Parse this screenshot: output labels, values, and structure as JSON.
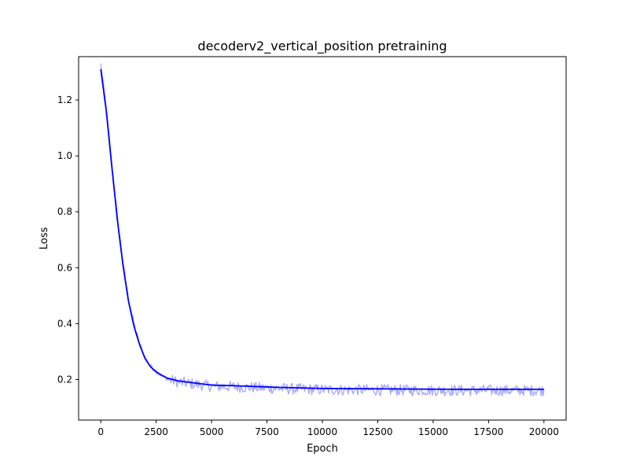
{
  "chart_data": {
    "type": "line",
    "title": "decoderv2_vertical_position pretraining",
    "xlabel": "Epoch",
    "ylabel": "Loss",
    "xlim": [
      -1000,
      21000
    ],
    "ylim": [
      0.055,
      1.355
    ],
    "grid": false,
    "legend": "none",
    "x_ticks": [
      0,
      2500,
      5000,
      7500,
      10000,
      12500,
      15000,
      17500,
      20000
    ],
    "y_ticks": [
      0.2,
      0.4,
      0.6,
      0.8,
      1.0,
      1.2
    ],
    "x_tick_labels": [
      "0",
      "2500",
      "5000",
      "7500",
      "10000",
      "12500",
      "15000",
      "17500",
      "20000"
    ],
    "y_tick_labels": [
      "0.2",
      "0.4",
      "0.6",
      "0.8",
      "1.0",
      "1.2"
    ],
    "series": [
      {
        "role": "raw",
        "color": "#aaaaff",
        "x": [
          0,
          250,
          500,
          750,
          1000,
          1250,
          1500,
          1750,
          2000,
          2250,
          2500,
          2750,
          3000,
          3500,
          4000,
          4500,
          5000,
          6000,
          7000,
          8000,
          9000,
          10000,
          12000,
          14000,
          16000,
          18000,
          20000
        ],
        "y": [
          1.33,
          1.17,
          0.97,
          0.78,
          0.62,
          0.49,
          0.4,
          0.33,
          0.28,
          0.25,
          0.23,
          0.215,
          0.205,
          0.195,
          0.19,
          0.185,
          0.18,
          0.178,
          0.175,
          0.172,
          0.17,
          0.168,
          0.167,
          0.166,
          0.165,
          0.165,
          0.165
        ],
        "noise": 0.025
      },
      {
        "role": "smoothed",
        "color": "#0000ff",
        "x": [
          0,
          250,
          500,
          750,
          1000,
          1250,
          1500,
          1750,
          2000,
          2250,
          2500,
          2750,
          3000,
          3500,
          4000,
          4500,
          5000,
          6000,
          7000,
          8000,
          9000,
          10000,
          12000,
          14000,
          16000,
          18000,
          20000
        ],
        "y": [
          1.31,
          1.16,
          0.96,
          0.77,
          0.61,
          0.48,
          0.39,
          0.325,
          0.275,
          0.245,
          0.228,
          0.215,
          0.205,
          0.195,
          0.19,
          0.185,
          0.18,
          0.178,
          0.175,
          0.172,
          0.17,
          0.168,
          0.167,
          0.166,
          0.165,
          0.165,
          0.165
        ]
      }
    ]
  }
}
